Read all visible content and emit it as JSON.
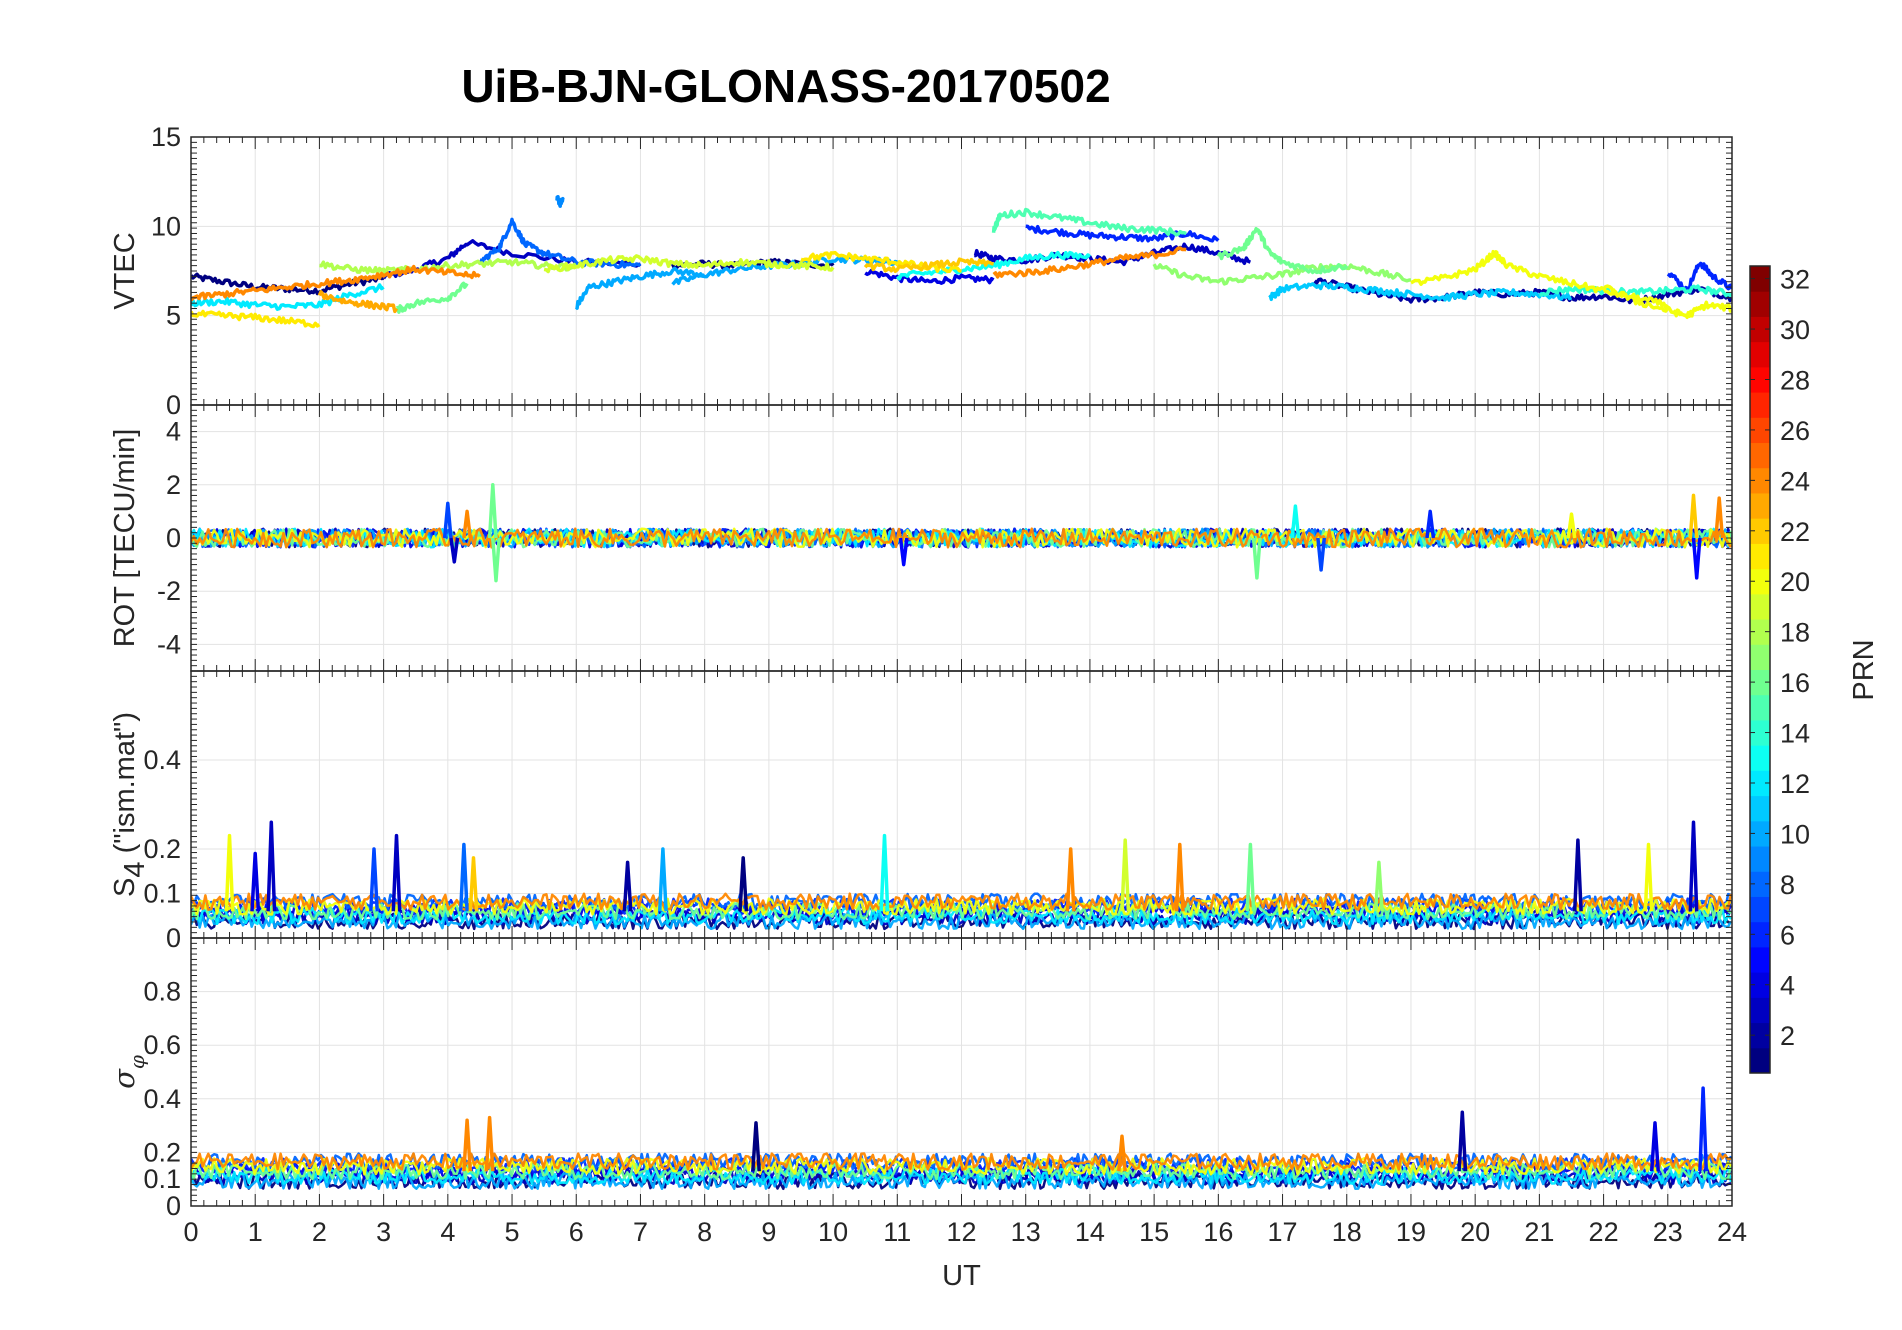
{
  "title": "UiB-BJN-GLONASS-20170502",
  "chart_data": [
    {
      "panel": "vtec",
      "type": "line",
      "ylabel": "VTEC",
      "xlim": [
        0,
        24
      ],
      "ylim": [
        0,
        15
      ],
      "yticks": [
        "0",
        "5",
        "10",
        "15"
      ],
      "grid": true,
      "series": [
        {
          "prn": 1,
          "x": [
            0,
            0.5,
            1,
            1.5,
            2,
            2.5,
            3
          ],
          "y": [
            7.2,
            6.9,
            6.6,
            6.5,
            6.4,
            6.8,
            7.1
          ]
        },
        {
          "prn": 3,
          "x": [
            3,
            3.5,
            4,
            4.3,
            5,
            6,
            7
          ],
          "y": [
            7.2,
            7.6,
            8.2,
            9.1,
            8.5,
            8.0,
            7.9
          ]
        },
        {
          "prn": 1,
          "x": [
            7.5,
            8,
            8.5,
            9,
            9.5,
            10
          ],
          "y": [
            7.8,
            7.9,
            7.8,
            8.0,
            7.9,
            7.8
          ]
        },
        {
          "prn": 4,
          "x": [
            10.5,
            11,
            11.5,
            12,
            12.5
          ],
          "y": [
            7.5,
            7.1,
            6.9,
            7.1,
            7.0
          ]
        },
        {
          "prn": 3,
          "x": [
            12.2,
            12.5,
            13,
            13.5,
            14,
            14.5,
            15,
            15.5,
            16,
            16.5
          ],
          "y": [
            8.5,
            8.2,
            8.1,
            8.4,
            8.2,
            8.0,
            8.5,
            8.9,
            8.5,
            8.0
          ]
        },
        {
          "prn": 6,
          "x": [
            13,
            13.5,
            14,
            14.5,
            15,
            15.5,
            16
          ],
          "y": [
            9.9,
            9.7,
            9.5,
            9.4,
            9.3,
            9.6,
            9.2
          ]
        },
        {
          "prn": 2,
          "x": [
            17.5,
            18,
            18.5,
            19,
            19.5,
            20,
            20.5,
            21,
            21.5,
            22,
            22.5,
            23,
            23.5,
            24
          ],
          "y": [
            7.0,
            6.6,
            6.2,
            5.9,
            6.0,
            6.3,
            6.2,
            6.3,
            6.0,
            6.1,
            5.8,
            6.2,
            6.5,
            6.0
          ]
        },
        {
          "prn": 6,
          "x": [
            23,
            23.3,
            23.5,
            23.7,
            24
          ],
          "y": [
            7.5,
            6.4,
            8.0,
            7.2,
            6.5
          ]
        },
        {
          "prn": 8,
          "x": [
            4.5,
            4.8,
            5,
            5.2,
            5.5,
            6,
            6.5,
            7
          ],
          "y": [
            8.0,
            8.8,
            10.3,
            9.0,
            8.5,
            8.0,
            7.9,
            7.8
          ]
        },
        {
          "prn": 9,
          "x": [
            5.7,
            5.75,
            5.8
          ],
          "y": [
            11.6,
            11.3,
            11.5
          ]
        },
        {
          "prn": 10,
          "x": [
            6,
            6.2,
            6.6,
            7,
            7.5,
            8
          ],
          "y": [
            5.5,
            6.6,
            6.9,
            7.2,
            7.5,
            7.3
          ]
        },
        {
          "prn": 10,
          "x": [
            7.5,
            8,
            8.5,
            9,
            9.5,
            10,
            10.5,
            11
          ],
          "y": [
            6.8,
            7.3,
            7.6,
            7.8,
            7.9,
            8.2,
            8.1,
            8.0
          ]
        },
        {
          "prn": 11,
          "x": [
            16.8,
            17,
            17.5,
            18,
            18.5,
            19,
            19.5,
            20,
            20.5,
            21,
            21.5
          ],
          "y": [
            6.0,
            6.5,
            6.7,
            6.6,
            6.4,
            6.2,
            6.0,
            6.2,
            6.3,
            6.2,
            6.0
          ]
        },
        {
          "prn": 12,
          "x": [
            0,
            0.5,
            1,
            1.5,
            2,
            2.5,
            3
          ],
          "y": [
            5.7,
            5.8,
            5.6,
            5.5,
            5.6,
            6.2,
            6.6
          ]
        },
        {
          "prn": 13,
          "x": [
            11,
            11.5,
            12,
            12.5,
            13,
            13.5,
            14
          ],
          "y": [
            7.2,
            7.4,
            7.6,
            7.8,
            8.2,
            8.4,
            8.3
          ]
        },
        {
          "prn": 14,
          "x": [
            21,
            21.5,
            22,
            22.5,
            23,
            23.5,
            24
          ],
          "y": [
            6.3,
            6.5,
            6.4,
            6.3,
            6.4,
            6.5,
            6.2
          ]
        },
        {
          "prn": 15,
          "x": [
            12.5,
            12.6,
            13,
            13.5,
            14,
            14.5,
            15,
            15.5
          ],
          "y": [
            9.8,
            10.6,
            10.8,
            10.5,
            10.2,
            9.9,
            9.8,
            9.6
          ]
        },
        {
          "prn": 16,
          "x": [
            3.2,
            3.5,
            4,
            4.3
          ],
          "y": [
            5.3,
            5.7,
            6.0,
            6.8
          ]
        },
        {
          "prn": 17,
          "x": [
            15,
            15.5,
            16,
            16.5,
            17,
            17.5,
            18,
            18.5,
            19
          ],
          "y": [
            7.8,
            7.2,
            6.9,
            7.1,
            7.3,
            7.7,
            7.8,
            7.4,
            7.0
          ]
        },
        {
          "prn": 16,
          "x": [
            16,
            16.4,
            16.6,
            16.8,
            17,
            17.5,
            18
          ],
          "y": [
            8.3,
            8.8,
            9.9,
            8.5,
            8.0,
            7.5,
            7.8
          ]
        },
        {
          "prn": 18,
          "x": [
            2,
            2.5,
            3,
            3.5,
            4,
            4.5,
            5,
            5.5,
            6
          ],
          "y": [
            7.9,
            7.6,
            7.5,
            7.6,
            7.8,
            7.9,
            8.0,
            7.8,
            7.7
          ]
        },
        {
          "prn": 19,
          "x": [
            5.5,
            6,
            6.5,
            7,
            7.5,
            8,
            8.5,
            9,
            9.5,
            10
          ],
          "y": [
            7.6,
            7.8,
            8.1,
            8.2,
            7.9,
            7.8,
            8.0,
            7.9,
            7.8,
            7.7
          ]
        },
        {
          "prn": 20,
          "x": [
            19,
            19.5,
            20,
            20.3,
            20.5,
            21,
            21.5,
            22,
            22.5,
            23
          ],
          "y": [
            6.8,
            7.1,
            7.6,
            8.5,
            7.8,
            7.2,
            6.8,
            6.4,
            6.0,
            5.6
          ]
        },
        {
          "prn": 21,
          "x": [
            0,
            0.5,
            1,
            1.5,
            2
          ],
          "y": [
            5.1,
            5.0,
            4.9,
            4.7,
            4.5
          ]
        },
        {
          "prn": 21,
          "x": [
            9.5,
            10,
            10.5,
            11,
            11.5,
            12
          ],
          "y": [
            8.2,
            8.4,
            8.2,
            8.0,
            7.7,
            7.5
          ]
        },
        {
          "prn": 20,
          "x": [
            22,
            22.5,
            23,
            23.3,
            23.6,
            24
          ],
          "y": [
            6.6,
            5.8,
            5.3,
            5.0,
            5.6,
            5.4
          ]
        },
        {
          "prn": 23,
          "x": [
            2,
            2.4,
            2.8,
            3.2
          ],
          "y": [
            6.2,
            5.8,
            5.6,
            5.4
          ]
        },
        {
          "prn": 22,
          "x": [
            10.5,
            11,
            11.5,
            12,
            12.5
          ],
          "y": [
            7.8,
            7.6,
            7.8,
            8.0,
            7.9
          ]
        },
        {
          "prn": 24,
          "x": [
            0,
            0.5,
            1,
            1.5,
            2,
            2.5,
            3,
            3.5,
            4,
            4.5
          ],
          "y": [
            6.0,
            6.2,
            6.4,
            6.6,
            6.8,
            7.0,
            7.3,
            7.6,
            7.4,
            7.2
          ]
        },
        {
          "prn": 24,
          "x": [
            12.5,
            13,
            13.5,
            14,
            14.5,
            15,
            15.5
          ],
          "y": [
            7.3,
            7.4,
            7.6,
            7.9,
            8.2,
            8.4,
            8.7
          ]
        }
      ]
    },
    {
      "panel": "rot",
      "type": "line",
      "ylabel": "ROT [TECU/min]",
      "xlim": [
        0,
        24
      ],
      "ylim": [
        -5,
        5
      ],
      "yticks": [
        "-4",
        "-2",
        "0",
        "2",
        "4"
      ],
      "grid": true,
      "baseline": 0,
      "spikes": [
        {
          "x": 4.0,
          "y": 1.3,
          "prn": 7
        },
        {
          "x": 4.1,
          "y": -0.9,
          "prn": 3
        },
        {
          "x": 4.7,
          "y": 2.0,
          "prn": 16
        },
        {
          "x": 4.75,
          "y": -1.6,
          "prn": 16
        },
        {
          "x": 4.3,
          "y": 1.0,
          "prn": 24
        },
        {
          "x": 11.1,
          "y": -1.0,
          "prn": 5
        },
        {
          "x": 16.6,
          "y": -1.5,
          "prn": 16
        },
        {
          "x": 17.2,
          "y": 1.2,
          "prn": 13
        },
        {
          "x": 17.6,
          "y": -1.2,
          "prn": 7
        },
        {
          "x": 19.3,
          "y": 1.0,
          "prn": 6
        },
        {
          "x": 21.5,
          "y": 0.9,
          "prn": 20
        },
        {
          "x": 23.4,
          "y": 1.6,
          "prn": 22
        },
        {
          "x": 23.45,
          "y": -1.5,
          "prn": 5
        },
        {
          "x": 23.8,
          "y": 1.5,
          "prn": 24
        }
      ]
    },
    {
      "panel": "s4",
      "type": "line",
      "ylabel": "S",
      "ylabel_sub": "4",
      "ylabel_suffix": " (\"ism.mat\")",
      "xlim": [
        0,
        24
      ],
      "ylim": [
        0,
        0.6
      ],
      "yticks": [
        "0",
        "0.1",
        "0.2",
        "0.4"
      ],
      "grid": true,
      "baseline": 0.06,
      "spikes": [
        {
          "x": 0.6,
          "y": 0.23,
          "prn": 20
        },
        {
          "x": 1.0,
          "y": 0.19,
          "prn": 4
        },
        {
          "x": 1.25,
          "y": 0.26,
          "prn": 3
        },
        {
          "x": 2.85,
          "y": 0.2,
          "prn": 7
        },
        {
          "x": 3.2,
          "y": 0.23,
          "prn": 3
        },
        {
          "x": 4.25,
          "y": 0.21,
          "prn": 8
        },
        {
          "x": 4.4,
          "y": 0.18,
          "prn": 22
        },
        {
          "x": 6.8,
          "y": 0.17,
          "prn": 2
        },
        {
          "x": 7.35,
          "y": 0.2,
          "prn": 10
        },
        {
          "x": 8.6,
          "y": 0.18,
          "prn": 1
        },
        {
          "x": 10.8,
          "y": 0.23,
          "prn": 13
        },
        {
          "x": 13.7,
          "y": 0.2,
          "prn": 24
        },
        {
          "x": 14.55,
          "y": 0.22,
          "prn": 19
        },
        {
          "x": 15.4,
          "y": 0.21,
          "prn": 24
        },
        {
          "x": 16.5,
          "y": 0.21,
          "prn": 16
        },
        {
          "x": 18.5,
          "y": 0.17,
          "prn": 17
        },
        {
          "x": 21.6,
          "y": 0.22,
          "prn": 2
        },
        {
          "x": 22.7,
          "y": 0.21,
          "prn": 20
        },
        {
          "x": 23.4,
          "y": 0.26,
          "prn": 3
        }
      ]
    },
    {
      "panel": "sigma_phi",
      "type": "line",
      "ylabel": "σ",
      "ylabel_sub": "φ",
      "xlabel": "UT",
      "xlim": [
        0,
        24
      ],
      "ylim": [
        0,
        1
      ],
      "yticks": [
        "0",
        "0.1",
        "0.2",
        "0.4",
        "0.6",
        "0.8"
      ],
      "xticks": [
        "0",
        "1",
        "2",
        "3",
        "4",
        "5",
        "6",
        "7",
        "8",
        "9",
        "10",
        "11",
        "12",
        "13",
        "14",
        "15",
        "16",
        "17",
        "18",
        "19",
        "20",
        "21",
        "22",
        "23",
        "24"
      ],
      "grid": true,
      "baseline": 0.13,
      "spikes": [
        {
          "x": 4.3,
          "y": 0.32,
          "prn": 24
        },
        {
          "x": 4.65,
          "y": 0.33,
          "prn": 24
        },
        {
          "x": 8.8,
          "y": 0.31,
          "prn": 1
        },
        {
          "x": 14.5,
          "y": 0.26,
          "prn": 24
        },
        {
          "x": 19.8,
          "y": 0.35,
          "prn": 2
        },
        {
          "x": 22.8,
          "y": 0.31,
          "prn": 4
        },
        {
          "x": 23.55,
          "y": 0.44,
          "prn": 6
        }
      ]
    }
  ],
  "colorbar": {
    "label": "PRN",
    "range": [
      1,
      32
    ],
    "ticks": [
      "2",
      "4",
      "6",
      "8",
      "10",
      "12",
      "14",
      "16",
      "18",
      "20",
      "22",
      "24",
      "26",
      "28",
      "30",
      "32"
    ],
    "colormap": "jet",
    "line_prn": [
      1,
      3,
      4,
      6,
      8,
      10,
      12,
      16,
      20,
      24
    ]
  }
}
